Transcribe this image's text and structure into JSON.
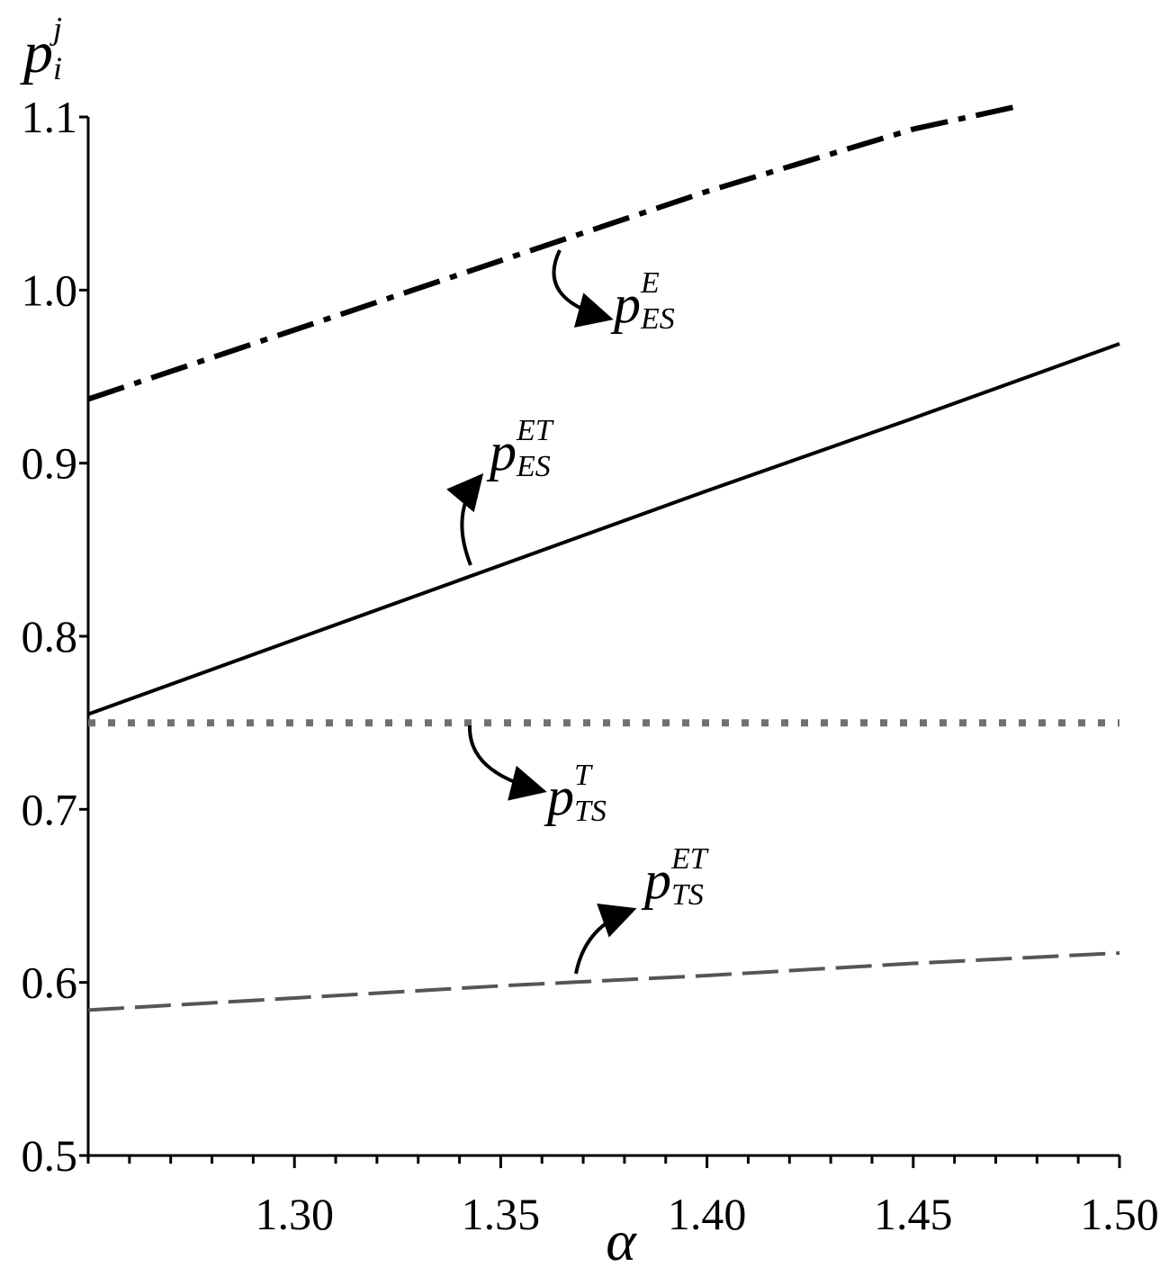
{
  "chart_data": {
    "type": "line",
    "xlabel": "α",
    "ylabel": {
      "base": "p",
      "sub": "i",
      "sup": "j"
    },
    "xlim": [
      1.25,
      1.5
    ],
    "ylim": [
      0.5,
      1.1
    ],
    "x_ticks": [
      1.3,
      1.35,
      1.4,
      1.45,
      1.5
    ],
    "x_tick_labels": [
      "1.30",
      "1.35",
      "1.40",
      "1.45",
      "1.50"
    ],
    "x_minor_step": 0.01,
    "y_ticks": [
      0.5,
      0.6,
      0.7,
      0.8,
      0.9,
      1.0,
      1.1
    ],
    "y_tick_labels": [
      "0.5",
      "0.6",
      "0.7",
      "0.8",
      "0.9",
      "1.0",
      "1.1"
    ],
    "grid": false,
    "legend": "none",
    "series": [
      {
        "key": "pES-E",
        "label": {
          "base": "p",
          "sub": "ES",
          "sup": "E"
        },
        "style": "dashdot",
        "color": "#000000",
        "x": [
          1.25,
          1.3,
          1.35,
          1.4,
          1.45,
          1.475
        ],
        "y": [
          0.937,
          0.977,
          1.017,
          1.057,
          1.093,
          1.106
        ]
      },
      {
        "key": "pES-ET",
        "label": {
          "base": "p",
          "sub": "ES",
          "sup": "ET"
        },
        "style": "solid",
        "color": "#000000",
        "x": [
          1.25,
          1.3,
          1.35,
          1.4,
          1.45,
          1.5
        ],
        "y": [
          0.755,
          0.798,
          0.841,
          0.884,
          0.926,
          0.969
        ]
      },
      {
        "key": "pTS-T",
        "label": {
          "base": "p",
          "sub": "TS",
          "sup": "T"
        },
        "style": "dotted",
        "color": "#707070",
        "x": [
          1.25,
          1.5
        ],
        "y": [
          0.75,
          0.75
        ]
      },
      {
        "key": "pTS-ET",
        "label": {
          "base": "p",
          "sub": "TS",
          "sup": "ET"
        },
        "style": "dashed",
        "color": "#555555",
        "x": [
          1.25,
          1.3,
          1.35,
          1.4,
          1.45,
          1.5
        ],
        "y": [
          0.584,
          0.591,
          0.598,
          0.604,
          0.611,
          0.617
        ]
      }
    ]
  }
}
